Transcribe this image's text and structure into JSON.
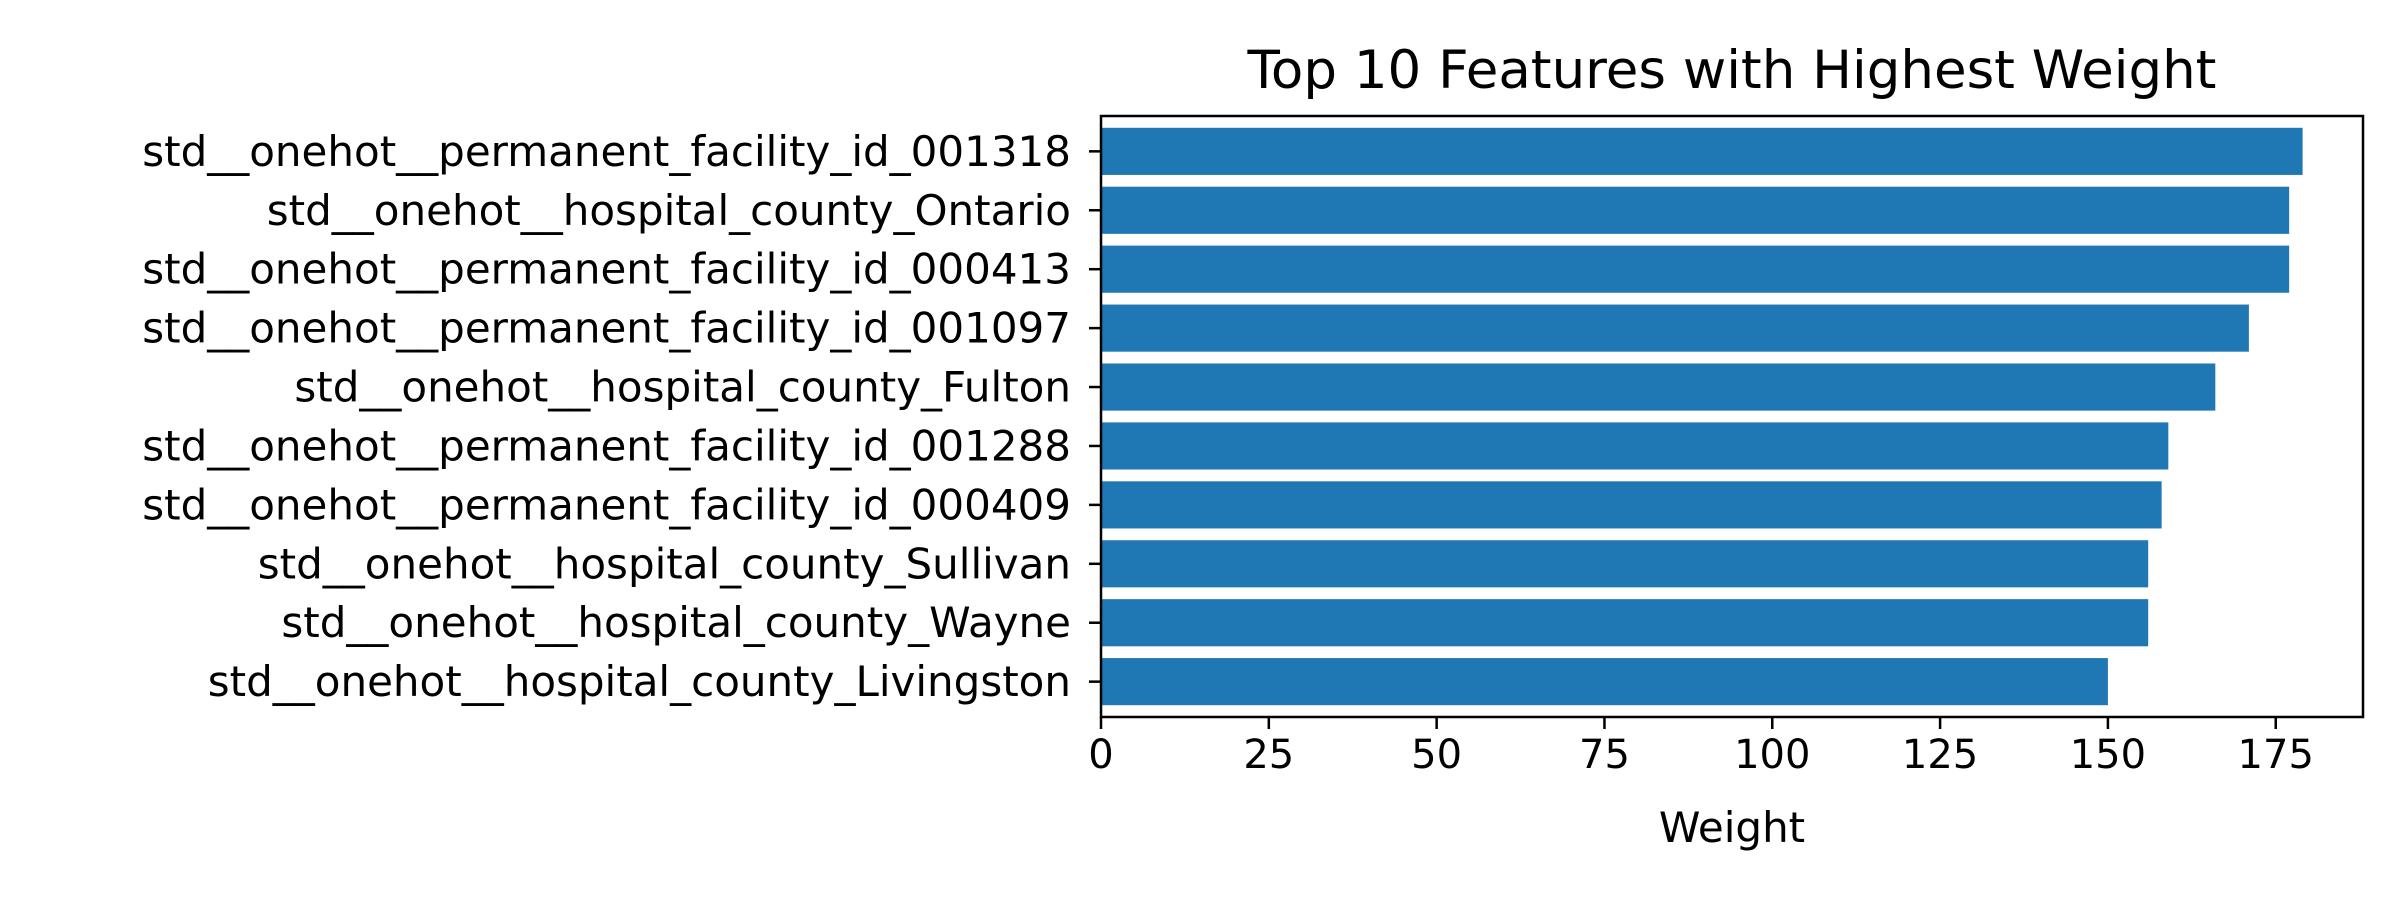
{
  "chart_data": {
    "type": "bar",
    "orientation": "horizontal",
    "title": "Top 10 Features with Highest Weight",
    "xlabel": "Weight",
    "ylabel": "",
    "xlim": [
      0,
      188
    ],
    "xticks": [
      0,
      25,
      50,
      75,
      100,
      125,
      150,
      175
    ],
    "grid": false,
    "bar_color": "#1f77b4",
    "categories": [
      "std__onehot__permanent_facility_id_001318",
      "std__onehot__hospital_county_Ontario",
      "std__onehot__permanent_facility_id_000413",
      "std__onehot__permanent_facility_id_001097",
      "std__onehot__hospital_county_Fulton",
      "std__onehot__permanent_facility_id_001288",
      "std__onehot__permanent_facility_id_000409",
      "std__onehot__hospital_county_Sullivan",
      "std__onehot__hospital_county_Wayne",
      "std__onehot__hospital_county_Livingston"
    ],
    "values": [
      179,
      177,
      177,
      171,
      166,
      159,
      158,
      156,
      156,
      150
    ]
  }
}
